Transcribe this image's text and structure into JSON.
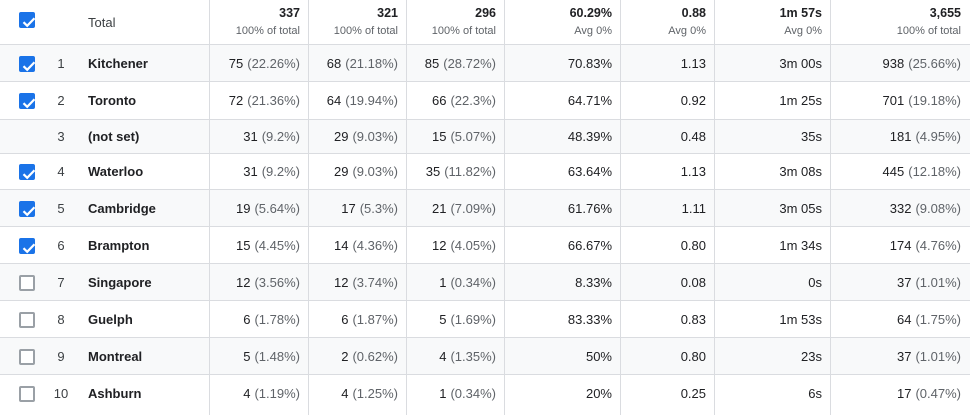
{
  "header": {
    "label": "Total",
    "checked": true,
    "columns": [
      {
        "total": "337",
        "sub": "100% of total"
      },
      {
        "total": "321",
        "sub": "100% of total"
      },
      {
        "total": "296",
        "sub": "100% of total"
      },
      {
        "total": "60.29%",
        "sub": "Avg 0%"
      },
      {
        "total": "0.88",
        "sub": "Avg 0%"
      },
      {
        "total": "1m 57s",
        "sub": "Avg 0%"
      },
      {
        "total": "3,655",
        "sub": "100% of total"
      }
    ]
  },
  "rows": [
    {
      "index": "1",
      "city": "Kitchener",
      "checked": true,
      "c1": "75",
      "c1p": "(22.26%)",
      "c2": "68",
      "c2p": "(21.18%)",
      "c3": "85",
      "c3p": "(28.72%)",
      "c4": "70.83%",
      "c5": "1.13",
      "c6": "3m 00s",
      "c7": "938",
      "c7p": "(25.66%)"
    },
    {
      "index": "2",
      "city": "Toronto",
      "checked": true,
      "c1": "72",
      "c1p": "(21.36%)",
      "c2": "64",
      "c2p": "(19.94%)",
      "c3": "66",
      "c3p": "(22.3%)",
      "c4": "64.71%",
      "c5": "0.92",
      "c6": "1m 25s",
      "c7": "701",
      "c7p": "(19.18%)"
    },
    {
      "index": "3",
      "city": "(not set)",
      "checked": null,
      "c1": "31",
      "c1p": "(9.2%)",
      "c2": "29",
      "c2p": "(9.03%)",
      "c3": "15",
      "c3p": "(5.07%)",
      "c4": "48.39%",
      "c5": "0.48",
      "c6": "35s",
      "c7": "181",
      "c7p": "(4.95%)"
    },
    {
      "index": "4",
      "city": "Waterloo",
      "checked": true,
      "c1": "31",
      "c1p": "(9.2%)",
      "c2": "29",
      "c2p": "(9.03%)",
      "c3": "35",
      "c3p": "(11.82%)",
      "c4": "63.64%",
      "c5": "1.13",
      "c6": "3m 08s",
      "c7": "445",
      "c7p": "(12.18%)"
    },
    {
      "index": "5",
      "city": "Cambridge",
      "checked": true,
      "c1": "19",
      "c1p": "(5.64%)",
      "c2": "17",
      "c2p": "(5.3%)",
      "c3": "21",
      "c3p": "(7.09%)",
      "c4": "61.76%",
      "c5": "1.11",
      "c6": "3m 05s",
      "c7": "332",
      "c7p": "(9.08%)"
    },
    {
      "index": "6",
      "city": "Brampton",
      "checked": true,
      "c1": "15",
      "c1p": "(4.45%)",
      "c2": "14",
      "c2p": "(4.36%)",
      "c3": "12",
      "c3p": "(4.05%)",
      "c4": "66.67%",
      "c5": "0.80",
      "c6": "1m 34s",
      "c7": "174",
      "c7p": "(4.76%)"
    },
    {
      "index": "7",
      "city": "Singapore",
      "checked": false,
      "c1": "12",
      "c1p": "(3.56%)",
      "c2": "12",
      "c2p": "(3.74%)",
      "c3": "1",
      "c3p": "(0.34%)",
      "c4": "8.33%",
      "c5": "0.08",
      "c6": "0s",
      "c7": "37",
      "c7p": "(1.01%)"
    },
    {
      "index": "8",
      "city": "Guelph",
      "checked": false,
      "c1": "6",
      "c1p": "(1.78%)",
      "c2": "6",
      "c2p": "(1.87%)",
      "c3": "5",
      "c3p": "(1.69%)",
      "c4": "83.33%",
      "c5": "0.83",
      "c6": "1m 53s",
      "c7": "64",
      "c7p": "(1.75%)"
    },
    {
      "index": "9",
      "city": "Montreal",
      "checked": false,
      "c1": "5",
      "c1p": "(1.48%)",
      "c2": "2",
      "c2p": "(0.62%)",
      "c3": "4",
      "c3p": "(1.35%)",
      "c4": "50%",
      "c5": "0.80",
      "c6": "23s",
      "c7": "37",
      "c7p": "(1.01%)"
    },
    {
      "index": "10",
      "city": "Ashburn",
      "checked": false,
      "c1": "4",
      "c1p": "(1.19%)",
      "c2": "4",
      "c2p": "(1.25%)",
      "c3": "1",
      "c3p": "(0.34%)",
      "c4": "20%",
      "c5": "0.25",
      "c6": "6s",
      "c7": "17",
      "c7p": "(0.47%)"
    }
  ],
  "colors": {
    "accent": "#1a73e8",
    "border": "#dadce0",
    "alt_row": "#f8f9fa"
  }
}
